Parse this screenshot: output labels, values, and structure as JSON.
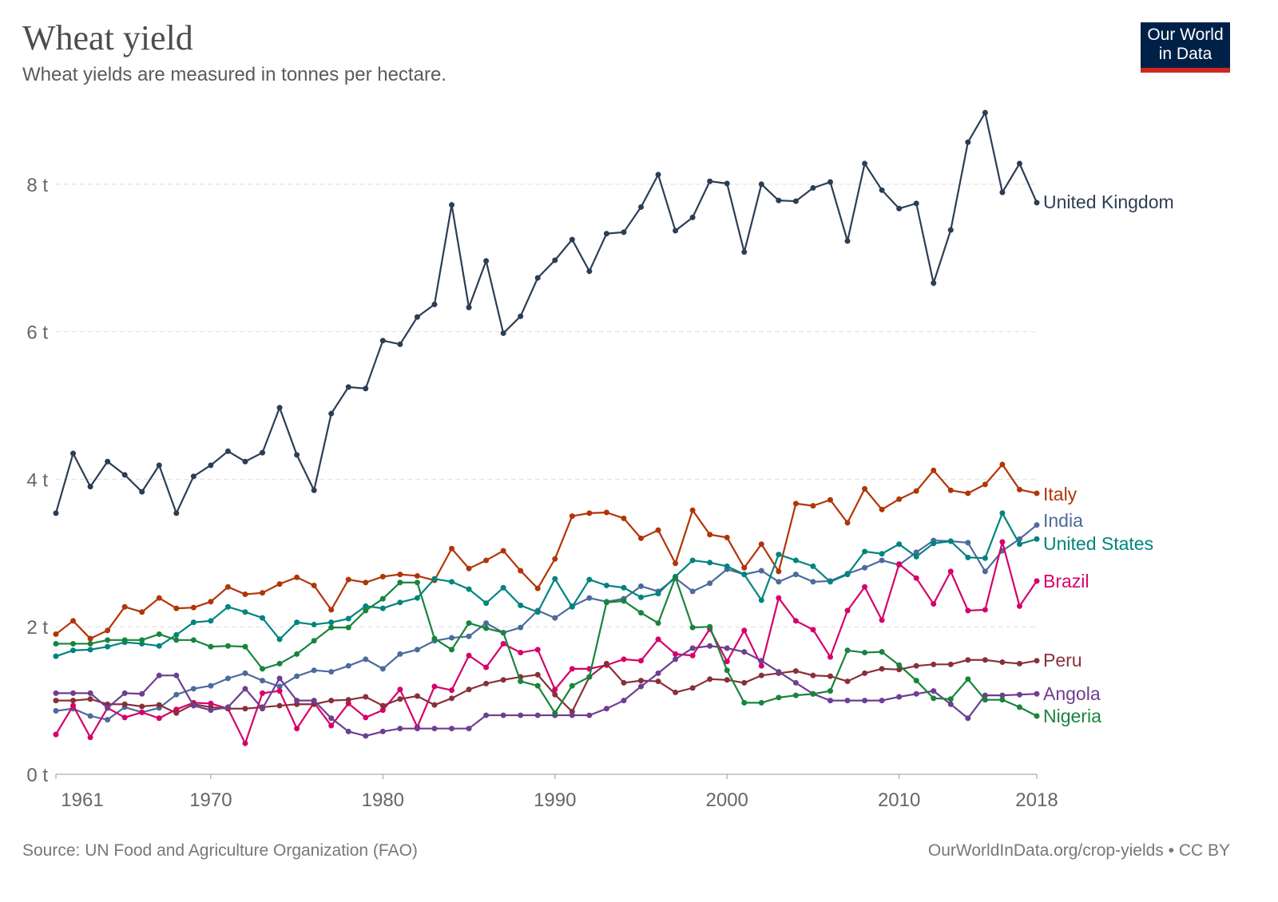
{
  "chart_data": {
    "type": "line",
    "title": "Wheat yield",
    "subtitle": "Wheat yields are measured in tonnes per hectare.",
    "source": "Source: UN Food and Agriculture Organization (FAO)",
    "credit": "OurWorldInData.org/crop-yields • CC BY",
    "logo": "Our World in Data",
    "x_start": 1961,
    "x_ticks": [
      1961,
      1970,
      1980,
      1990,
      2000,
      2010,
      2018
    ],
    "y_ticks": [
      0,
      2,
      4,
      6,
      8
    ],
    "y_unit": " t",
    "ylim": [
      0,
      9
    ],
    "xlim": [
      1961,
      2018
    ],
    "grid": "horizontal dashed",
    "legend": "labels at line ends (right)",
    "series": [
      {
        "name": "United Kingdom",
        "color": "#2c3e55",
        "values": [
          3.54,
          4.35,
          3.9,
          4.24,
          4.06,
          3.83,
          4.19,
          3.54,
          4.04,
          4.19,
          4.38,
          4.24,
          4.36,
          4.97,
          4.33,
          3.85,
          4.89,
          5.25,
          5.23,
          5.88,
          5.83,
          6.2,
          6.37,
          7.72,
          6.33,
          6.96,
          5.98,
          6.21,
          6.73,
          6.97,
          7.25,
          6.82,
          7.33,
          7.35,
          7.69,
          8.13,
          7.37,
          7.55,
          8.04,
          8.01,
          7.08,
          8.0,
          7.78,
          7.77,
          7.95,
          8.03,
          7.23,
          8.28,
          7.92,
          7.67,
          7.74,
          6.66,
          7.38,
          8.57,
          8.97,
          7.89,
          8.28,
          7.75
        ]
      },
      {
        "name": "Italy",
        "color": "#b13507",
        "values": [
          1.9,
          2.08,
          1.84,
          1.95,
          2.27,
          2.2,
          2.39,
          2.25,
          2.26,
          2.34,
          2.54,
          2.44,
          2.46,
          2.58,
          2.67,
          2.56,
          2.23,
          2.64,
          2.6,
          2.68,
          2.71,
          2.69,
          2.63,
          3.06,
          2.79,
          2.9,
          3.03,
          2.76,
          2.52,
          2.92,
          3.5,
          3.54,
          3.55,
          3.47,
          3.2,
          3.31,
          2.86,
          3.58,
          3.25,
          3.21,
          2.8,
          3.12,
          2.75,
          3.67,
          3.64,
          3.72,
          3.41,
          3.87,
          3.59,
          3.73,
          3.84,
          4.12,
          3.85,
          3.81,
          3.93,
          4.2,
          3.86,
          3.81
        ]
      },
      {
        "name": "India",
        "color": "#4c6a9c",
        "values": [
          0.86,
          0.89,
          0.79,
          0.74,
          0.91,
          0.84,
          0.9,
          1.08,
          1.16,
          1.2,
          1.3,
          1.37,
          1.27,
          1.19,
          1.33,
          1.41,
          1.39,
          1.47,
          1.56,
          1.43,
          1.63,
          1.69,
          1.81,
          1.85,
          1.87,
          2.05,
          1.92,
          1.99,
          2.22,
          2.12,
          2.28,
          2.39,
          2.34,
          2.38,
          2.55,
          2.48,
          2.66,
          2.48,
          2.59,
          2.78,
          2.71,
          2.76,
          2.61,
          2.71,
          2.61,
          2.62,
          2.72,
          2.8,
          2.9,
          2.84,
          3.01,
          3.17,
          3.16,
          3.14,
          2.75,
          3.03,
          3.19,
          3.38
        ]
      },
      {
        "name": "United States",
        "color": "#00847e",
        "values": [
          1.6,
          1.68,
          1.69,
          1.73,
          1.79,
          1.77,
          1.74,
          1.89,
          2.06,
          2.08,
          2.27,
          2.2,
          2.12,
          1.83,
          2.06,
          2.03,
          2.06,
          2.11,
          2.28,
          2.25,
          2.33,
          2.39,
          2.65,
          2.61,
          2.51,
          2.32,
          2.53,
          2.29,
          2.2,
          2.65,
          2.27,
          2.64,
          2.56,
          2.53,
          2.4,
          2.45,
          2.68,
          2.9,
          2.87,
          2.82,
          2.71,
          2.36,
          2.98,
          2.9,
          2.82,
          2.61,
          2.71,
          3.02,
          2.99,
          3.12,
          2.95,
          3.13,
          3.16,
          2.94,
          2.93,
          3.54,
          3.12,
          3.19
        ]
      },
      {
        "name": "Brazil",
        "color": "#d6006b",
        "values": [
          0.54,
          0.93,
          0.5,
          0.9,
          0.77,
          0.84,
          0.76,
          0.88,
          0.97,
          0.96,
          0.89,
          0.42,
          1.1,
          1.13,
          0.62,
          0.97,
          0.66,
          0.96,
          0.77,
          0.87,
          1.15,
          0.64,
          1.19,
          1.14,
          1.61,
          1.45,
          1.77,
          1.65,
          1.69,
          1.15,
          1.43,
          1.43,
          1.48,
          1.56,
          1.54,
          1.83,
          1.63,
          1.61,
          1.97,
          1.53,
          1.95,
          1.47,
          2.39,
          2.08,
          1.96,
          1.59,
          2.22,
          2.54,
          2.09,
          2.85,
          2.66,
          2.31,
          2.75,
          2.22,
          2.23,
          3.15,
          2.28,
          2.62
        ]
      },
      {
        "name": "Peru",
        "color": "#883039",
        "values": [
          1.0,
          1.0,
          1.02,
          0.95,
          0.95,
          0.92,
          0.94,
          0.83,
          0.95,
          0.91,
          0.89,
          0.89,
          0.91,
          0.93,
          0.95,
          0.95,
          1.0,
          1.01,
          1.05,
          0.93,
          1.02,
          1.06,
          0.94,
          1.03,
          1.15,
          1.23,
          1.28,
          1.32,
          1.35,
          1.08,
          0.85,
          1.32,
          1.5,
          1.24,
          1.27,
          1.26,
          1.11,
          1.17,
          1.29,
          1.28,
          1.24,
          1.34,
          1.37,
          1.4,
          1.34,
          1.33,
          1.26,
          1.37,
          1.43,
          1.42,
          1.47,
          1.49,
          1.49,
          1.55,
          1.55,
          1.52,
          1.5,
          1.54
        ]
      },
      {
        "name": "Angola",
        "color": "#6d3e91",
        "values": [
          1.1,
          1.1,
          1.1,
          0.9,
          1.1,
          1.09,
          1.34,
          1.34,
          0.93,
          0.87,
          0.91,
          1.16,
          0.89,
          1.3,
          1.0,
          1.0,
          0.76,
          0.58,
          0.52,
          0.58,
          0.62,
          0.62,
          0.62,
          0.62,
          0.62,
          0.8,
          0.8,
          0.8,
          0.8,
          0.8,
          0.8,
          0.8,
          0.89,
          1.0,
          1.19,
          1.37,
          1.56,
          1.71,
          1.74,
          1.71,
          1.66,
          1.54,
          1.39,
          1.24,
          1.09,
          1.0,
          1.0,
          1.0,
          1.0,
          1.05,
          1.09,
          1.13,
          0.95,
          0.76,
          1.07,
          1.07,
          1.08,
          1.09
        ]
      },
      {
        "name": "Nigeria",
        "color": "#18843d",
        "values": [
          1.77,
          1.77,
          1.77,
          1.82,
          1.82,
          1.82,
          1.9,
          1.82,
          1.82,
          1.73,
          1.74,
          1.73,
          1.43,
          1.5,
          1.63,
          1.81,
          1.99,
          1.99,
          2.22,
          2.38,
          2.6,
          2.6,
          1.84,
          1.69,
          2.05,
          1.98,
          1.92,
          1.26,
          1.2,
          0.83,
          1.2,
          1.32,
          2.33,
          2.35,
          2.19,
          2.05,
          2.67,
          1.99,
          2.0,
          1.41,
          0.97,
          0.97,
          1.04,
          1.07,
          1.09,
          1.13,
          1.68,
          1.65,
          1.66,
          1.48,
          1.27,
          1.03,
          1.02,
          1.29,
          1.01,
          1.01,
          0.91,
          0.79
        ]
      }
    ]
  }
}
